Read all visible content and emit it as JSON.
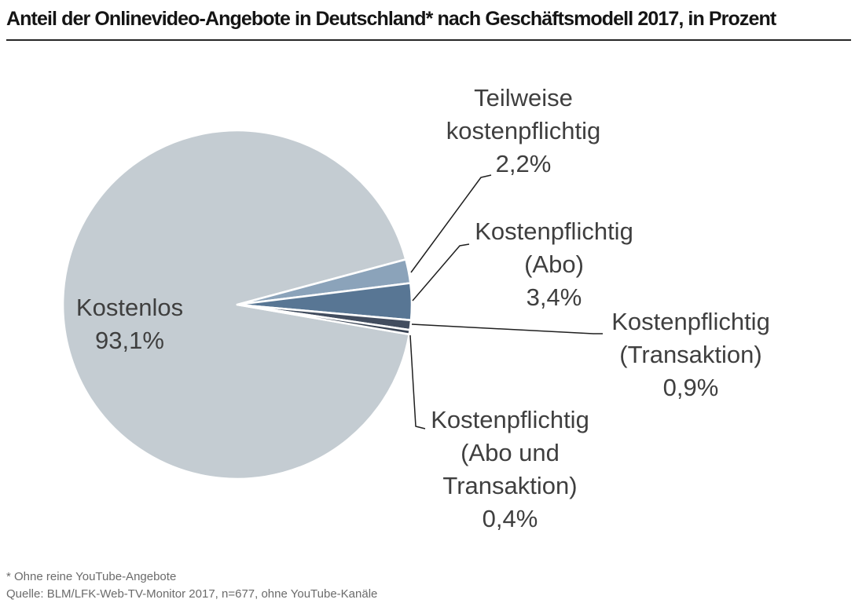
{
  "title": "Anteil der Onlinevideo-Angebote in Deutschland* nach Geschäftsmodell 2017, in Prozent",
  "footer": {
    "footnote": "* Ohne reine YouTube-Angebote",
    "source": "Quelle: BLM/LFK-Web-TV-Monitor 2017, n=677, ohne YouTube-Kanäle"
  },
  "chart_data": {
    "type": "pie",
    "title": "Anteil der Onlinevideo-Angebote in Deutschland* nach Geschäftsmodell 2017, in Prozent",
    "unit": "Prozent",
    "start_angle_deg_clockwise_from_top": 99.8,
    "slices": [
      {
        "label": "Kostenlos",
        "value": 93.1,
        "value_label": "93,1%",
        "color": "#c4ccd2"
      },
      {
        "label": "Teilweise kostenpflichtig",
        "value": 2.2,
        "value_label": "2,2%",
        "color": "#8ba3ba"
      },
      {
        "label": "Kostenpflichtig (Abo)",
        "value": 3.4,
        "value_label": "3,4%",
        "color": "#587694"
      },
      {
        "label": "Kostenpflichtig (Transaktion)",
        "value": 0.9,
        "value_label": "0,9%",
        "color": "#424d5f"
      },
      {
        "label": "Kostenpflichtig (Abo und Transaktion)",
        "value": 0.4,
        "value_label": "0,4%",
        "color": "#3a4454"
      }
    ],
    "legend": "none",
    "label_style": "outside callout lines, values with comma decimal separator"
  },
  "labels": {
    "kostenlos": {
      "lines": [
        "Kostenlos",
        "93,1%"
      ]
    },
    "teilweise": {
      "lines": [
        "Teilweise",
        "kostenpflichtig",
        "2,2%"
      ]
    },
    "abo": {
      "lines": [
        "Kostenpflichtig",
        "(Abo)",
        "3,4%"
      ]
    },
    "transaktion": {
      "lines": [
        "Kostenpflichtig",
        "(Transaktion)",
        "0,9%"
      ]
    },
    "abo_transaktion": {
      "lines": [
        "Kostenpflichtig",
        "(Abo und",
        "Transaktion)",
        "0,4%"
      ]
    }
  }
}
